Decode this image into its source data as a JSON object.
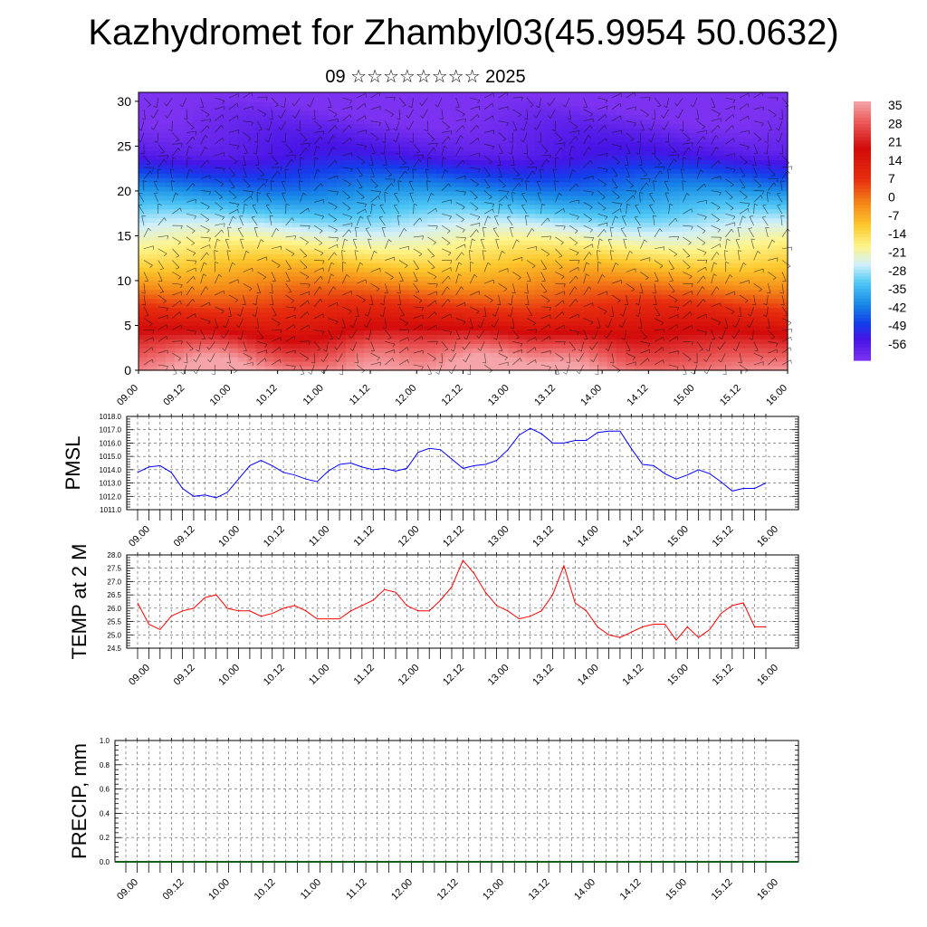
{
  "header": {
    "title": "Kazhydromet for Zhambyl03(45.9954 50.0632)",
    "subtitle": "09 ☆☆☆☆☆☆☆☆ 2025"
  },
  "chart_data": [
    {
      "type": "heatmap",
      "name": "vertical-profile",
      "x_ticks": [
        "09.00",
        "09.12",
        "10.00",
        "10.12",
        "11.00",
        "11.12",
        "12.00",
        "12.12",
        "13.00",
        "13.12",
        "14.00",
        "14.12",
        "15.00",
        "15.12",
        "16.00"
      ],
      "y_ticks": [
        0,
        5,
        10,
        15,
        20,
        25,
        30
      ],
      "ylim": [
        0,
        31
      ],
      "colorbar": {
        "labels": [
          35,
          28,
          21,
          14,
          7,
          0,
          -7,
          -14,
          -21,
          -28,
          -35,
          -42,
          -49,
          -56
        ],
        "range": [
          -63,
          42
        ]
      },
      "wind_barbs": true
    },
    {
      "type": "line",
      "name": "pmsl",
      "ylabel": "PMSL",
      "ylim": [
        1011.0,
        1018.0
      ],
      "y_ticks": [
        "1011.0",
        "1012.0",
        "1013.0",
        "1014.0",
        "1015.0",
        "1016.0",
        "1017.0",
        "1018.0"
      ],
      "x_ticks": [
        "09.00",
        "09.12",
        "10.00",
        "10.12",
        "11.00",
        "11.12",
        "12.00",
        "12.12",
        "13.00",
        "13.12",
        "14.00",
        "14.12",
        "15.00",
        "15.12",
        "16.00"
      ],
      "color": "#0000ff",
      "values": [
        1013.8,
        1014.2,
        1014.3,
        1013.8,
        1012.6,
        1012.0,
        1012.1,
        1011.9,
        1012.3,
        1013.3,
        1014.3,
        1014.7,
        1014.3,
        1013.8,
        1013.6,
        1013.3,
        1013.1,
        1013.9,
        1014.4,
        1014.5,
        1014.2,
        1014.0,
        1014.1,
        1013.9,
        1014.1,
        1015.3,
        1015.6,
        1015.5,
        1014.8,
        1014.1,
        1014.3,
        1014.4,
        1014.7,
        1015.5,
        1016.6,
        1017.1,
        1016.7,
        1016.0,
        1016.0,
        1016.2,
        1016.2,
        1016.8,
        1016.9,
        1016.9,
        1015.6,
        1014.4,
        1014.3,
        1013.7,
        1013.3,
        1013.6,
        1014.0,
        1013.7,
        1013.1,
        1012.4,
        1012.6,
        1012.6,
        1013.0
      ]
    },
    {
      "type": "line",
      "name": "temp2m",
      "ylabel": "TEMP at 2 M",
      "ylim": [
        24.5,
        28.0
      ],
      "y_ticks": [
        "24.5",
        "25.0",
        "25.5",
        "26.0",
        "26.5",
        "27.0",
        "27.5",
        "28.0"
      ],
      "x_ticks": [
        "09.00",
        "09.12",
        "10.00",
        "10.12",
        "11.00",
        "11.12",
        "12.00",
        "12.12",
        "13.00",
        "13.12",
        "14.00",
        "14.12",
        "15.00",
        "15.12",
        "16.00"
      ],
      "color": "#ff0000",
      "values": [
        26.2,
        25.4,
        25.2,
        25.7,
        25.9,
        26.0,
        26.4,
        26.5,
        26.0,
        25.9,
        25.9,
        25.7,
        25.8,
        26.0,
        26.1,
        25.9,
        25.6,
        25.6,
        25.6,
        25.9,
        26.1,
        26.3,
        26.7,
        26.6,
        26.1,
        25.9,
        25.9,
        26.3,
        26.8,
        27.8,
        27.3,
        26.6,
        26.1,
        25.9,
        25.6,
        25.7,
        25.9,
        26.5,
        27.6,
        26.2,
        25.9,
        25.3,
        25.0,
        24.9,
        25.1,
        25.3,
        25.4,
        25.4,
        24.8,
        25.3,
        24.9,
        25.2,
        25.8,
        26.1,
        26.2,
        25.3,
        25.3
      ]
    },
    {
      "type": "bar",
      "name": "precip",
      "ylabel": "PRECIP, mm",
      "ylim": [
        0.0,
        1.0
      ],
      "y_ticks": [
        "0.0",
        "0.2",
        "0.4",
        "0.6",
        "0.8",
        "1.0"
      ],
      "x_ticks": [
        "09.00",
        "09.12",
        "10.00",
        "10.12",
        "11.00",
        "11.12",
        "12.00",
        "12.12",
        "13.00",
        "13.12",
        "14.00",
        "14.12",
        "15.00",
        "15.12",
        "16.00"
      ],
      "color": "#000000",
      "values": []
    }
  ]
}
